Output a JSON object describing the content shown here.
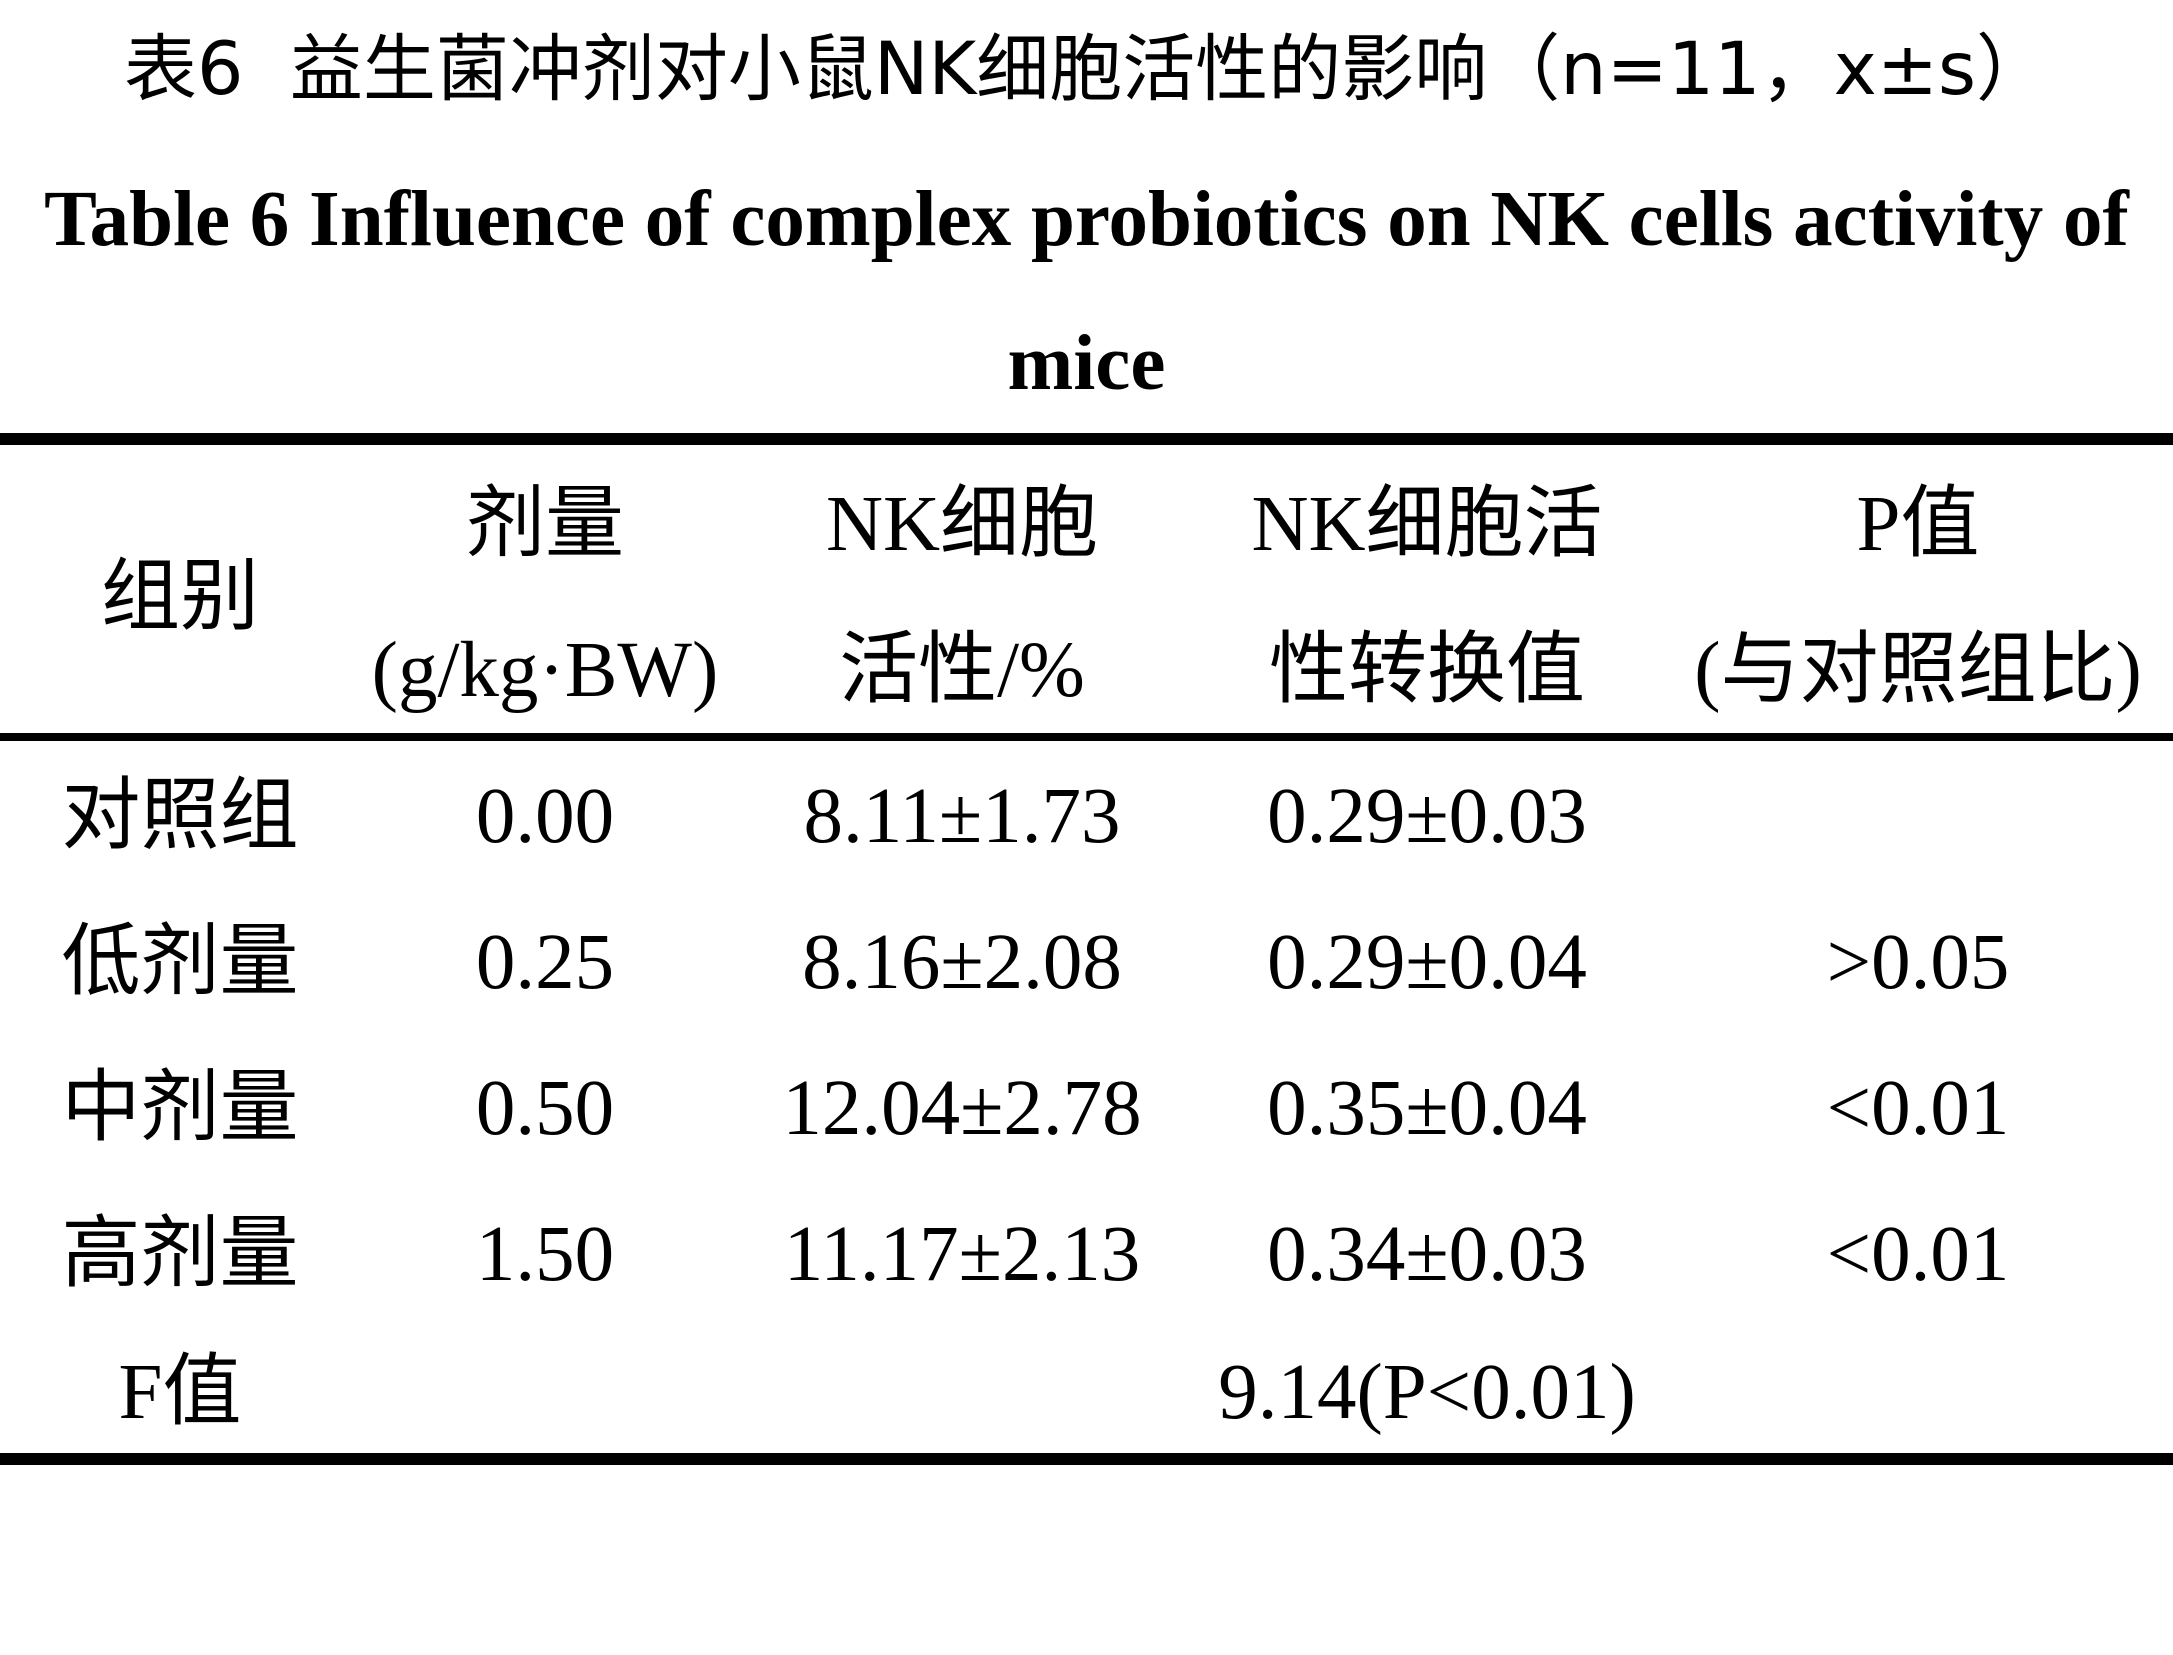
{
  "chart_data": {
    "type": "table",
    "title": "表6  益生菌冲剂对小鼠NK细胞活性的影响（n=11，x±s）",
    "subtitle": "Table 6 Influence of complex probiotics on NK cells activity of mice",
    "columns": [
      [
        "组别"
      ],
      [
        "剂量",
        "(g/kg·BW)"
      ],
      [
        "NK细胞",
        "活性/%"
      ],
      [
        "NK细胞活",
        "性转换值"
      ],
      [
        "P值",
        "(与对照组比)"
      ]
    ],
    "rows": [
      {
        "group": "对照组",
        "dose": "0.00",
        "nk_activity": "8.11±1.73",
        "nk_conversion": "0.29±0.03"
      },
      {
        "group": "低剂量",
        "dose": "0.25",
        "nk_activity": "8.16±2.08",
        "nk_conversion": "0.29±0.04",
        "p_value": ">0.05"
      },
      {
        "group": "中剂量",
        "dose": "0.50",
        "nk_activity": "12.04±2.78",
        "nk_conversion": "0.35±0.04",
        "p_value": "<0.01"
      },
      {
        "group": "高剂量",
        "dose": "1.50",
        "nk_activity": "11.17±2.13",
        "nk_conversion": "0.34±0.03",
        "p_value": "<0.01"
      }
    ],
    "footer": {
      "label": "F值",
      "value": "9.14(P<0.01)"
    }
  }
}
